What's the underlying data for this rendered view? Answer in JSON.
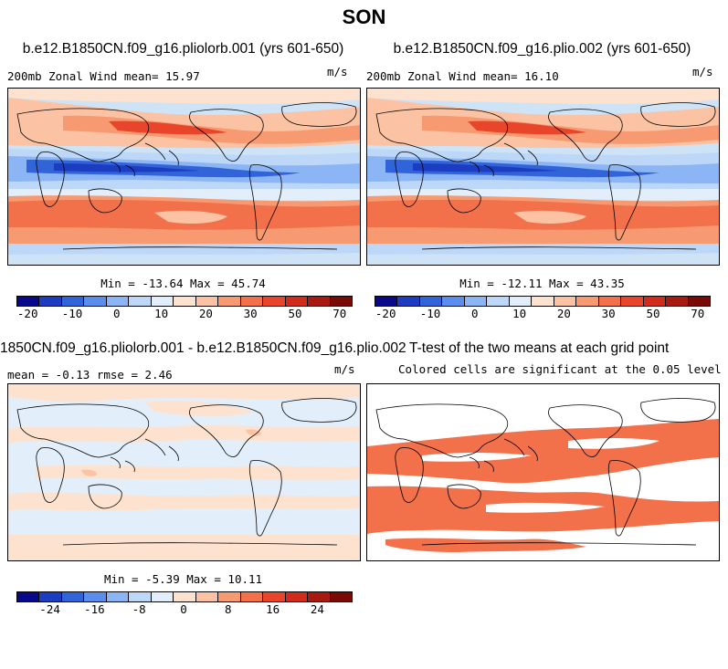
{
  "figure": {
    "season": "SON"
  },
  "panels": {
    "p1": {
      "title": "b.e12.B1850CN.f09_g16.pliolorb.001 (yrs 601-650)",
      "left_label": "200mb Zonal Wind  mean=  15.97",
      "units": "m/s",
      "stats": "Min = -13.64 Max = 45.74"
    },
    "p2": {
      "title": "b.e12.B1850CN.f09_g16.plio.002 (yrs 601-650)",
      "left_label": "200mb Zonal Wind  mean=  16.10",
      "units": "m/s",
      "stats": "Min = -12.11 Max = 43.35"
    },
    "p3": {
      "title": "1850CN.f09_g16.pliolorb.001 - b.e12.B1850CN.f09_g16.plio.002",
      "left_label": "mean =  -0.13    rmse =   2.46",
      "units": "m/s",
      "stats": "Min =  -5.39 Max =  10.11"
    },
    "p4": {
      "title": "T-test of the two means at each grid point",
      "left_label": "Colored cells are significant at the 0.05 level"
    }
  },
  "colorbars": {
    "full": {
      "colors": [
        "#08088a",
        "#1c3dc2",
        "#3264d9",
        "#5a8ded",
        "#8cb5f5",
        "#bdd7f8",
        "#e3eefb",
        "#fde3cf",
        "#fbc3a3",
        "#f89a71",
        "#f2704a",
        "#e8452a",
        "#d02b1b",
        "#a81a10",
        "#7a0a05"
      ],
      "labels": [
        "-20",
        "-10",
        "0",
        "10",
        "20",
        "30",
        "50",
        "70"
      ]
    },
    "diff": {
      "colors": [
        "#08088a",
        "#1c3dc2",
        "#3264d9",
        "#5a8ded",
        "#8cb5f5",
        "#bdd7f8",
        "#e3eefb",
        "#fde3cf",
        "#fbc3a3",
        "#f89a71",
        "#f2704a",
        "#e8452a",
        "#d02b1b",
        "#a81a10",
        "#7a0a05"
      ],
      "labels": [
        "-24",
        "-16",
        "-8",
        "0",
        "8",
        "16",
        "24"
      ]
    }
  }
}
